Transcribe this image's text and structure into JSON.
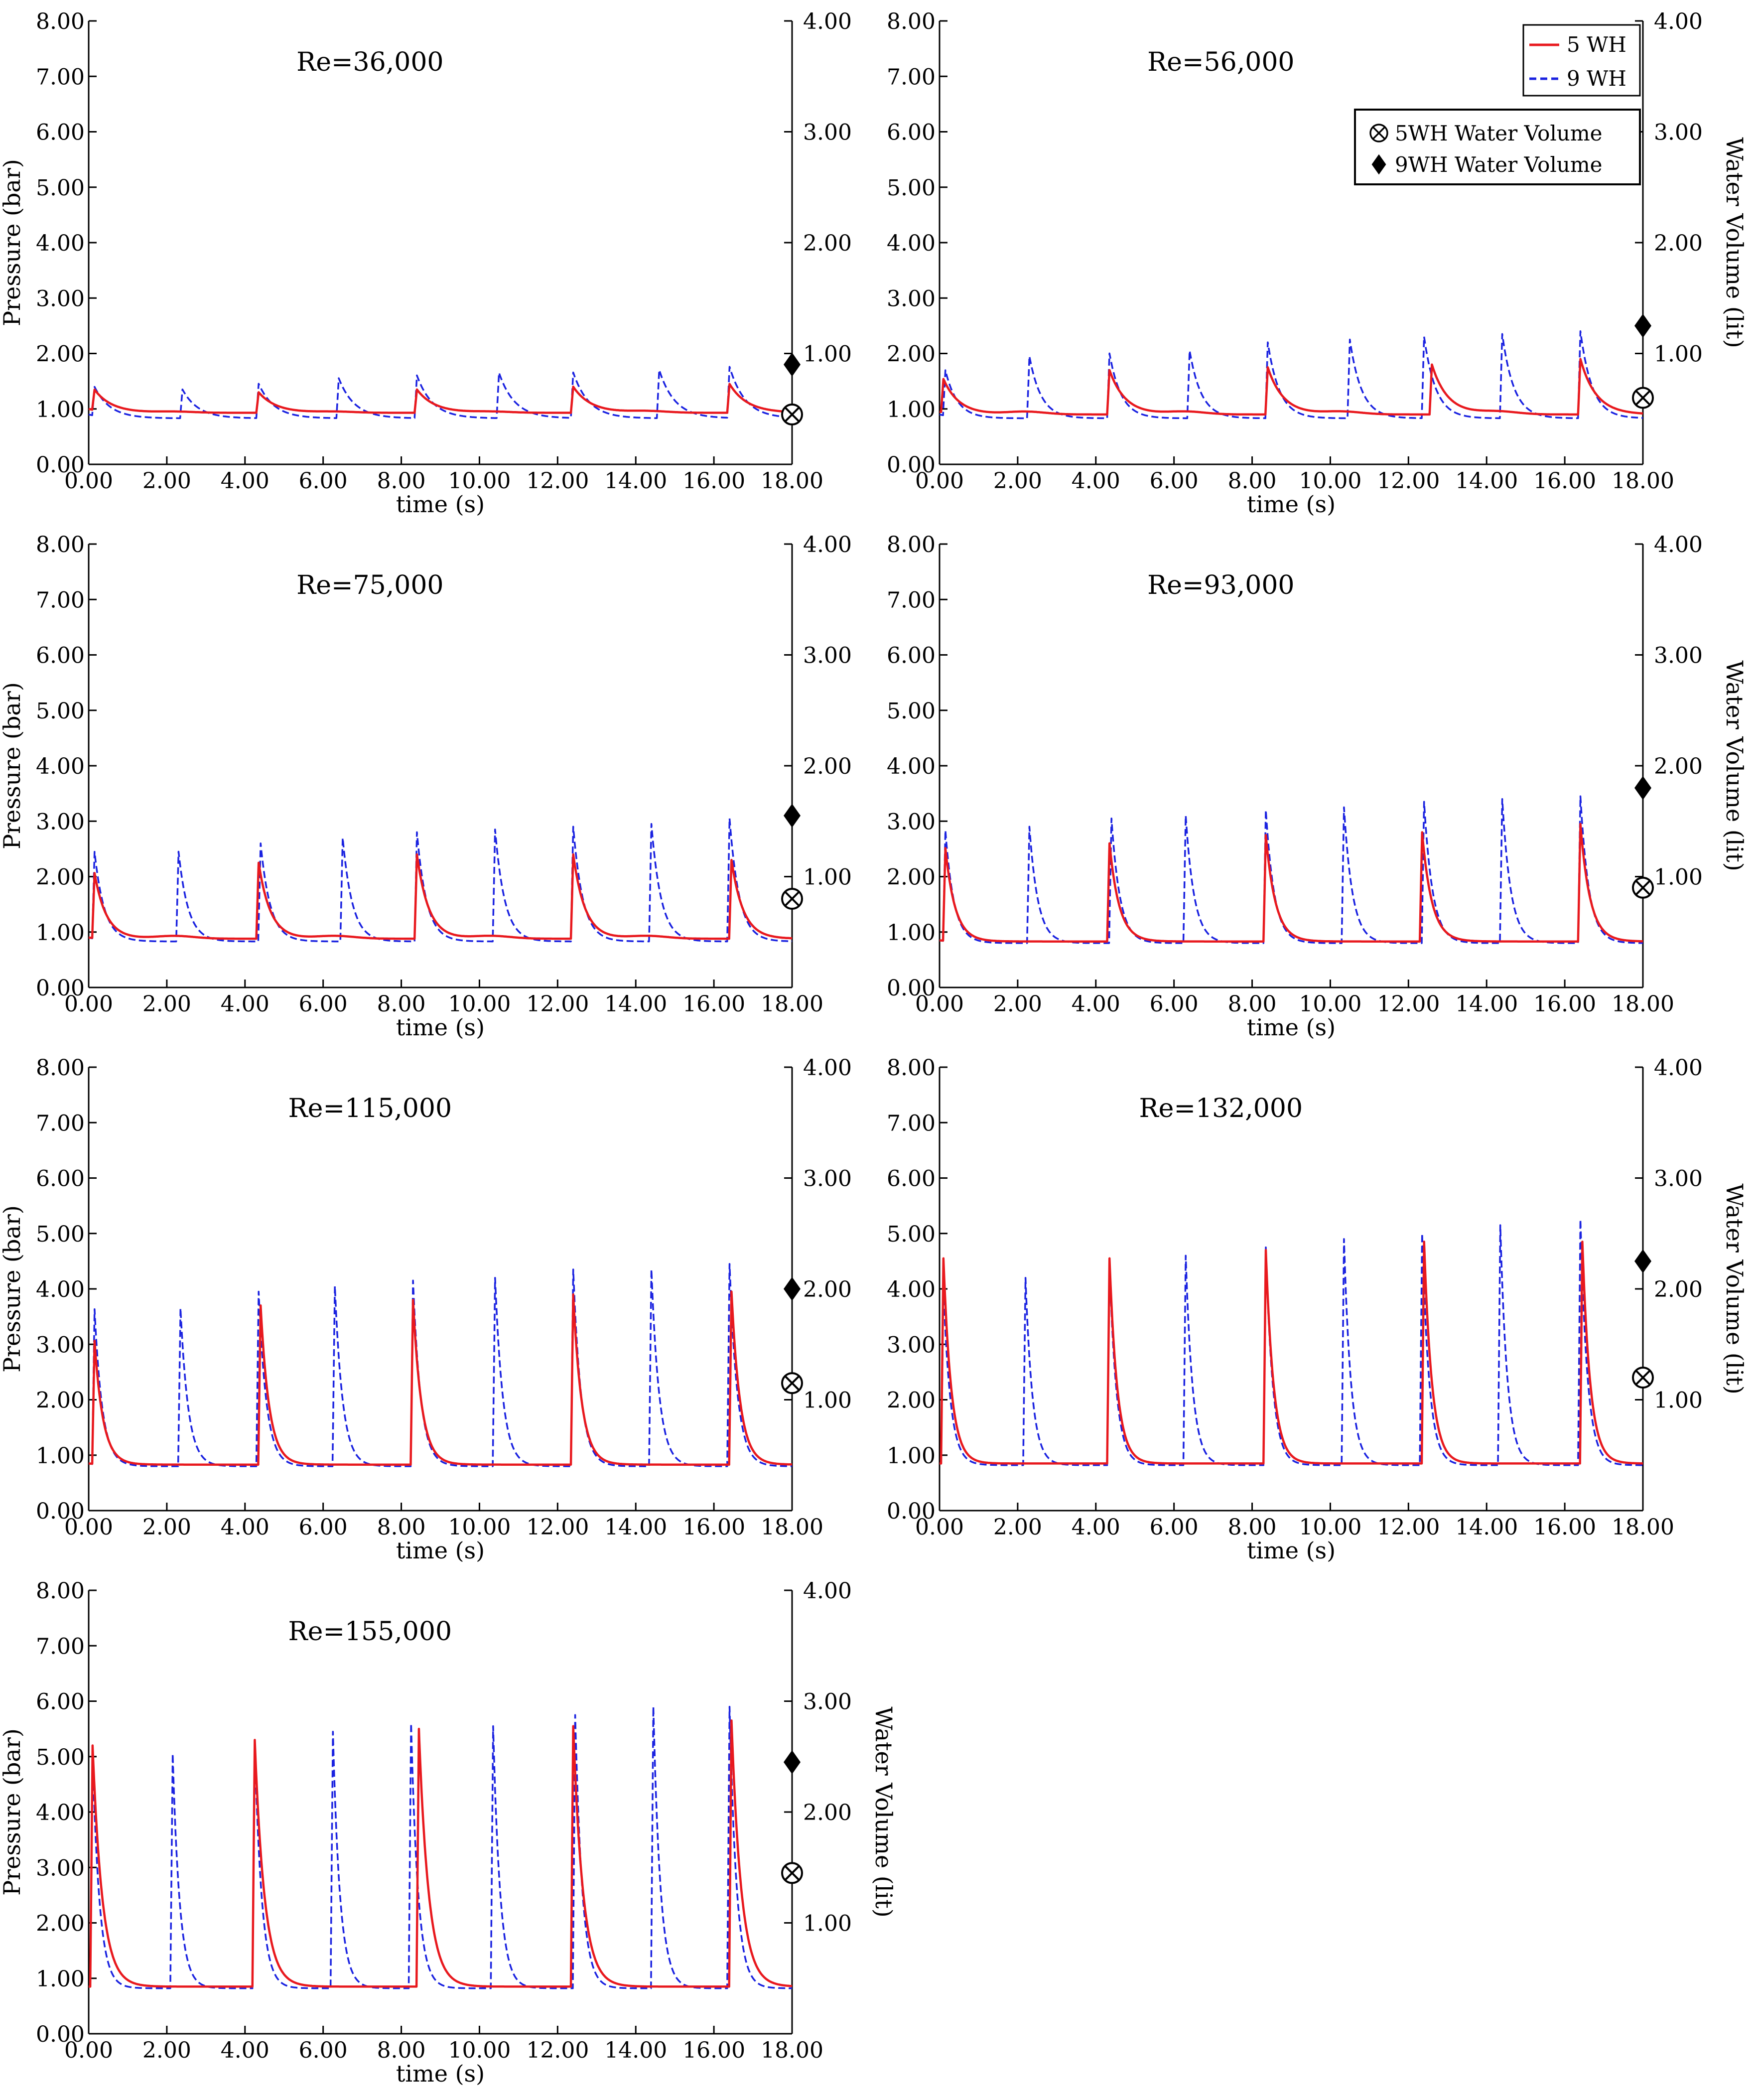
{
  "figure": {
    "x_label": "time (s)",
    "y_left_label": "Pressure (bar)",
    "y_right_label": "Water Volume (lit)",
    "legend_lines": [
      "5 WH",
      "9 WH"
    ],
    "legend_markers": [
      "5WH Water Volume",
      "9WH Water Volume"
    ]
  },
  "colors": {
    "series_5wh": "#e8191e",
    "series_9wh": "#1a22e0",
    "axis": "#000000"
  },
  "icons": {
    "marker_5wh": "circle-x-icon",
    "marker_9wh": "diamond-icon"
  },
  "chart_data": [
    {
      "type": "line",
      "title": "Re=36,000",
      "xlabel": "time (s)",
      "ylabel": "Pressure (bar)",
      "y2label": "",
      "xlim": [
        0,
        18
      ],
      "ylim": [
        0,
        8
      ],
      "y2lim": [
        0,
        4
      ],
      "xticks": [
        "0.00",
        "2.00",
        "4.00",
        "6.00",
        "8.00",
        "10.00",
        "12.00",
        "14.00",
        "16.00",
        "18.00"
      ],
      "yticks": [
        "0.00",
        "1.00",
        "2.00",
        "3.00",
        "4.00",
        "5.00",
        "6.00",
        "7.00",
        "8.00"
      ],
      "y2ticks": [
        "1.00",
        "2.00",
        "3.00",
        "4.00"
      ],
      "series": [
        {
          "name": "5 WH",
          "style": "solid",
          "baseline": 0.93,
          "start": 1.0,
          "decay": 0.45,
          "peaks": [
            [
              0.15,
              1.3
            ],
            [
              4.35,
              1.3
            ],
            [
              8.4,
              1.35
            ],
            [
              12.4,
              1.4
            ],
            [
              16.4,
              1.45
            ]
          ],
          "bumps": [
            [
              2.2,
              0.95
            ],
            [
              6.3,
              0.95
            ],
            [
              10.3,
              0.95
            ],
            [
              14.3,
              0.96
            ]
          ]
        },
        {
          "name": "9 WH",
          "style": "dashed",
          "baseline": 0.83,
          "start": 0.9,
          "decay": 0.4,
          "peaks": [
            [
              0.15,
              1.35
            ],
            [
              2.4,
              1.35
            ],
            [
              4.35,
              1.45
            ],
            [
              6.4,
              1.55
            ],
            [
              8.4,
              1.6
            ],
            [
              10.5,
              1.65
            ],
            [
              12.4,
              1.65
            ],
            [
              14.6,
              1.7
            ],
            [
              16.4,
              1.75
            ]
          ],
          "bumps": []
        }
      ],
      "water_volume": {
        "5WH Water Volume": 0.45,
        "9WH Water Volume": 0.9
      }
    },
    {
      "type": "line",
      "title": "Re=56,000",
      "xlabel": "time (s)",
      "ylabel": "",
      "y2label": "Water Volume (lit)",
      "xlim": [
        0,
        18
      ],
      "ylim": [
        0,
        8
      ],
      "y2lim": [
        0,
        4
      ],
      "xticks": [
        "0.00",
        "2.00",
        "4.00",
        "6.00",
        "8.00",
        "10.00",
        "12.00",
        "14.00",
        "16.00",
        "18.00"
      ],
      "yticks": [
        "0.00",
        "1.00",
        "2.00",
        "3.00",
        "4.00",
        "5.00",
        "6.00",
        "7.00",
        "8.00"
      ],
      "y2ticks": [
        "1.00",
        "2.00",
        "3.00",
        "4.00"
      ],
      "series": [
        {
          "name": "5 WH",
          "style": "solid",
          "baseline": 0.9,
          "start": 0.95,
          "decay": 0.4,
          "peaks": [
            [
              0.1,
              1.5
            ],
            [
              4.35,
              1.7
            ],
            [
              8.4,
              1.75
            ],
            [
              12.6,
              1.8
            ],
            [
              16.4,
              1.9
            ]
          ],
          "bumps": [
            [
              2.2,
              0.95
            ],
            [
              6.3,
              0.95
            ],
            [
              10.3,
              0.95
            ],
            [
              14.3,
              0.95
            ]
          ]
        },
        {
          "name": "9 WH",
          "style": "dashed",
          "baseline": 0.83,
          "start": 0.9,
          "decay": 0.3,
          "peaks": [
            [
              0.15,
              1.65
            ],
            [
              2.3,
              1.95
            ],
            [
              4.35,
              2.0
            ],
            [
              6.4,
              2.05
            ],
            [
              8.4,
              2.2
            ],
            [
              10.5,
              2.25
            ],
            [
              12.4,
              2.3
            ],
            [
              14.4,
              2.35
            ],
            [
              16.4,
              2.4
            ]
          ],
          "bumps": []
        }
      ],
      "water_volume": {
        "5WH Water Volume": 0.6,
        "9WH Water Volume": 1.25
      }
    },
    {
      "type": "line",
      "title": "Re=75,000",
      "xlabel": "time (s)",
      "ylabel": "Pressure (bar)",
      "y2label": "",
      "xlim": [
        0,
        18
      ],
      "ylim": [
        0,
        8
      ],
      "y2lim": [
        0,
        4
      ],
      "xticks": [
        "0.00",
        "2.00",
        "4.00",
        "6.00",
        "8.00",
        "10.00",
        "12.00",
        "14.00",
        "16.00",
        "18.00"
      ],
      "yticks": [
        "0.00",
        "1.00",
        "2.00",
        "3.00",
        "4.00",
        "5.00",
        "6.00",
        "7.00",
        "8.00"
      ],
      "y2ticks": [
        "1.00",
        "2.00",
        "3.00",
        "4.00"
      ],
      "series": [
        {
          "name": "5 WH",
          "style": "solid",
          "baseline": 0.88,
          "start": 0.9,
          "decay": 0.3,
          "peaks": [
            [
              0.15,
              2.05
            ],
            [
              4.35,
              2.25
            ],
            [
              8.4,
              2.4
            ],
            [
              12.4,
              2.4
            ],
            [
              16.45,
              2.3
            ]
          ],
          "bumps": [
            [
              2.2,
              0.93
            ],
            [
              6.3,
              0.93
            ],
            [
              10.3,
              0.93
            ],
            [
              14.3,
              0.93
            ]
          ]
        },
        {
          "name": "9 WH",
          "style": "dashed",
          "baseline": 0.83,
          "start": 0.9,
          "decay": 0.25,
          "peaks": [
            [
              0.15,
              2.4
            ],
            [
              2.3,
              2.45
            ],
            [
              4.4,
              2.6
            ],
            [
              6.5,
              2.7
            ],
            [
              8.4,
              2.8
            ],
            [
              10.4,
              2.85
            ],
            [
              12.4,
              2.9
            ],
            [
              14.4,
              2.95
            ],
            [
              16.4,
              3.05
            ]
          ],
          "bumps": []
        }
      ],
      "water_volume": {
        "5WH Water Volume": 0.8,
        "9WH Water Volume": 1.55
      }
    },
    {
      "type": "line",
      "title": "Re=93,000",
      "xlabel": "time (s)",
      "ylabel": "",
      "y2label": "Water Volume (lit)",
      "xlim": [
        0,
        18
      ],
      "ylim": [
        0,
        8
      ],
      "y2lim": [
        0,
        4
      ],
      "xticks": [
        "0.00",
        "2.00",
        "4.00",
        "6.00",
        "8.00",
        "10.00",
        "12.00",
        "14.00",
        "16.00",
        "18.00"
      ],
      "yticks": [
        "0.00",
        "1.00",
        "2.00",
        "3.00",
        "4.00",
        "5.00",
        "6.00",
        "7.00",
        "8.00"
      ],
      "y2ticks": [
        "1.00",
        "2.00",
        "3.00",
        "4.00"
      ],
      "series": [
        {
          "name": "5 WH",
          "style": "solid",
          "baseline": 0.83,
          "start": 0.85,
          "decay": 0.25,
          "peaks": [
            [
              0.15,
              2.5
            ],
            [
              4.35,
              2.6
            ],
            [
              8.35,
              2.75
            ],
            [
              12.35,
              2.8
            ],
            [
              16.4,
              2.95
            ]
          ],
          "bumps": []
        },
        {
          "name": "9 WH",
          "style": "dashed",
          "baseline": 0.8,
          "start": 0.85,
          "decay": 0.22,
          "peaks": [
            [
              0.15,
              2.8
            ],
            [
              2.3,
              2.9
            ],
            [
              4.4,
              3.05
            ],
            [
              6.3,
              3.1
            ],
            [
              8.35,
              3.2
            ],
            [
              10.35,
              3.25
            ],
            [
              12.4,
              3.35
            ],
            [
              14.4,
              3.4
            ],
            [
              16.4,
              3.45
            ]
          ],
          "bumps": []
        }
      ],
      "water_volume": {
        "5WH Water Volume": 0.9,
        "9WH Water Volume": 1.8
      }
    },
    {
      "type": "line",
      "title": "Re=115,000",
      "xlabel": "time (s)",
      "ylabel": "Pressure (bar)",
      "y2label": "",
      "xlim": [
        0,
        18
      ],
      "ylim": [
        0,
        8
      ],
      "y2lim": [
        0,
        4
      ],
      "xticks": [
        "0.00",
        "2.00",
        "4.00",
        "6.00",
        "8.00",
        "10.00",
        "12.00",
        "14.00",
        "16.00",
        "18.00"
      ],
      "yticks": [
        "0.00",
        "1.00",
        "2.00",
        "3.00",
        "4.00",
        "5.00",
        "6.00",
        "7.00",
        "8.00"
      ],
      "y2ticks": [
        "1.00",
        "2.00",
        "3.00",
        "4.00"
      ],
      "series": [
        {
          "name": "5 WH",
          "style": "solid",
          "baseline": 0.83,
          "start": 0.85,
          "decay": 0.22,
          "peaks": [
            [
              0.15,
              3.05
            ],
            [
              4.4,
              3.7
            ],
            [
              8.3,
              3.8
            ],
            [
              12.4,
              3.9
            ],
            [
              16.45,
              3.95
            ]
          ],
          "bumps": []
        },
        {
          "name": "9 WH",
          "style": "dashed",
          "baseline": 0.8,
          "start": 0.85,
          "decay": 0.2,
          "peaks": [
            [
              0.15,
              3.6
            ],
            [
              2.35,
              3.65
            ],
            [
              4.35,
              3.95
            ],
            [
              6.3,
              4.05
            ],
            [
              8.3,
              4.15
            ],
            [
              10.4,
              4.2
            ],
            [
              12.4,
              4.35
            ],
            [
              14.4,
              4.35
            ],
            [
              16.4,
              4.45
            ]
          ],
          "bumps": []
        }
      ],
      "water_volume": {
        "5WH Water Volume": 1.15,
        "9WH Water Volume": 2.0
      }
    },
    {
      "type": "line",
      "title": "Re=132,000",
      "xlabel": "time (s)",
      "ylabel": "",
      "y2label": "Water Volume (lit)",
      "xlim": [
        0,
        18
      ],
      "ylim": [
        0,
        8
      ],
      "y2lim": [
        0,
        4
      ],
      "xticks": [
        "0.00",
        "2.00",
        "4.00",
        "6.00",
        "8.00",
        "10.00",
        "12.00",
        "14.00",
        "16.00",
        "18.00"
      ],
      "yticks": [
        "0.00",
        "1.00",
        "2.00",
        "3.00",
        "4.00",
        "5.00",
        "6.00",
        "7.00",
        "8.00"
      ],
      "y2ticks": [
        "1.00",
        "2.00",
        "3.00",
        "4.00"
      ],
      "series": [
        {
          "name": "5 WH",
          "style": "solid",
          "baseline": 0.85,
          "start": 0.85,
          "decay": 0.2,
          "peaks": [
            [
              0.1,
              4.55
            ],
            [
              4.35,
              4.55
            ],
            [
              8.35,
              4.7
            ],
            [
              12.4,
              4.85
            ],
            [
              16.45,
              4.85
            ]
          ],
          "bumps": []
        },
        {
          "name": "9 WH",
          "style": "dashed",
          "baseline": 0.82,
          "start": 0.85,
          "decay": 0.18,
          "peaks": [
            [
              0.1,
              4.0
            ],
            [
              2.2,
              4.2
            ],
            [
              4.35,
              4.45
            ],
            [
              6.3,
              4.6
            ],
            [
              8.35,
              4.75
            ],
            [
              10.35,
              4.9
            ],
            [
              12.35,
              5.0
            ],
            [
              14.35,
              5.15
            ],
            [
              16.4,
              5.25
            ]
          ],
          "bumps": []
        }
      ],
      "water_volume": {
        "5WH Water Volume": 1.2,
        "9WH Water Volume": 2.25
      }
    },
    {
      "type": "line",
      "title": "Re=155,000",
      "xlabel": "time (s)",
      "ylabel": "Pressure (bar)",
      "y2label": "Water Volume (lit)",
      "xlim": [
        0,
        18
      ],
      "ylim": [
        0,
        8
      ],
      "y2lim": [
        0,
        4
      ],
      "xticks": [
        "0.00",
        "2.00",
        "4.00",
        "6.00",
        "8.00",
        "10.00",
        "12.00",
        "14.00",
        "16.00",
        "18.00"
      ],
      "yticks": [
        "0.00",
        "1.00",
        "2.00",
        "3.00",
        "4.00",
        "5.00",
        "6.00",
        "7.00",
        "8.00"
      ],
      "y2ticks": [
        "1.00",
        "2.00",
        "3.00",
        "4.00"
      ],
      "series": [
        {
          "name": "5 WH",
          "style": "solid",
          "baseline": 0.85,
          "start": 0.85,
          "decay": 0.25,
          "peaks": [
            [
              0.1,
              5.2
            ],
            [
              4.25,
              5.3
            ],
            [
              8.45,
              5.5
            ],
            [
              12.4,
              5.55
            ],
            [
              16.45,
              5.65
            ]
          ],
          "bumps": []
        },
        {
          "name": "9 WH",
          "style": "dashed",
          "baseline": 0.82,
          "start": 0.85,
          "decay": 0.18,
          "peaks": [
            [
              0.1,
              5.0
            ],
            [
              2.15,
              5.05
            ],
            [
              4.25,
              5.25
            ],
            [
              6.25,
              5.45
            ],
            [
              8.25,
              5.6
            ],
            [
              10.35,
              5.55
            ],
            [
              12.45,
              5.75
            ],
            [
              14.45,
              5.9
            ],
            [
              16.4,
              5.9
            ]
          ],
          "bumps": []
        }
      ],
      "water_volume": {
        "5WH Water Volume": 1.45,
        "9WH Water Volume": 2.45
      }
    }
  ]
}
